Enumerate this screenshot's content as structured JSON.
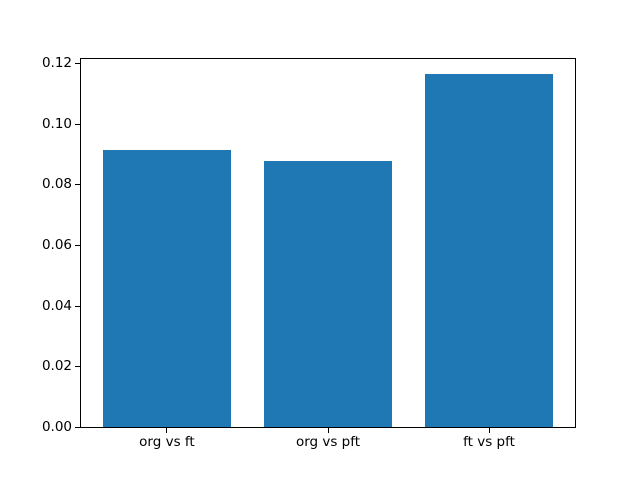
{
  "chart_data": {
    "type": "bar",
    "title": "",
    "xlabel": "",
    "ylabel": "",
    "categories": [
      "org vs ft",
      "org vs pft",
      "ft vs pft"
    ],
    "values": [
      0.0911,
      0.0877,
      0.1162
    ],
    "ylim": [
      0,
      0.122
    ],
    "yticks": [
      0.0,
      0.02,
      0.04,
      0.06,
      0.08,
      0.1,
      0.12
    ],
    "ytick_labels": [
      "0.00",
      "0.02",
      "0.04",
      "0.06",
      "0.08",
      "0.10",
      "0.12"
    ],
    "bar_color": "#1f77b4",
    "spine_color": "#000000",
    "text_color": "#000000",
    "background_color": "#ffffff",
    "grid": false,
    "legend": null
  }
}
